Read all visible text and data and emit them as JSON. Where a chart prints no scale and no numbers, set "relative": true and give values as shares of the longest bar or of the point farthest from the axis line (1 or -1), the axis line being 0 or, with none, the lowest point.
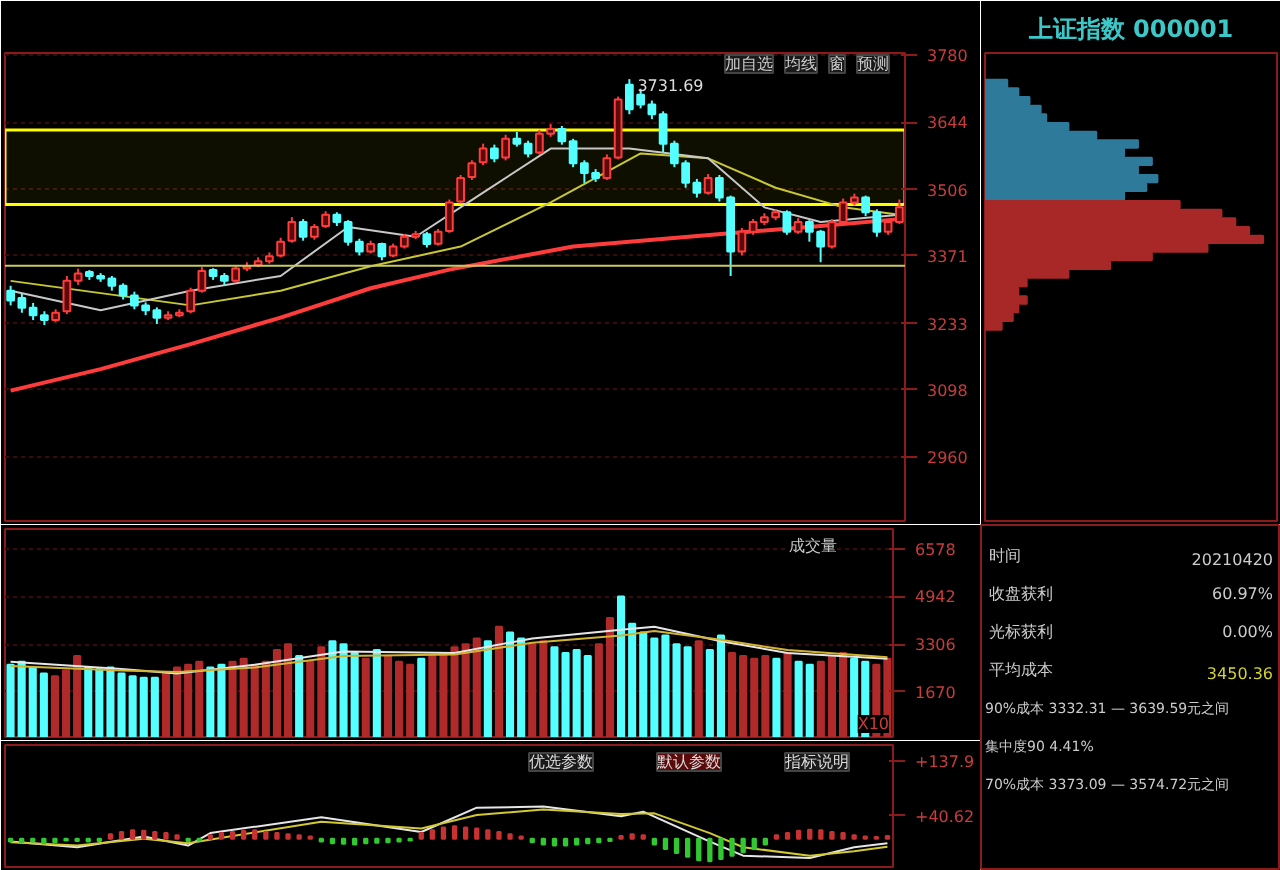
{
  "chart_data": [
    {
      "type": "candlestick",
      "categories": [
        null,
        null,
        null,
        null,
        null,
        null,
        null,
        null,
        null,
        null,
        null,
        null,
        null,
        null,
        null,
        null,
        null,
        null,
        null,
        null,
        null,
        null,
        null,
        null,
        null,
        null,
        null,
        null,
        null,
        null,
        null,
        null,
        null,
        null,
        null,
        null,
        null,
        null,
        null,
        null,
        null,
        null,
        null,
        null,
        null,
        null,
        null,
        null,
        null,
        null,
        null,
        null,
        null,
        null,
        null,
        null,
        null,
        null,
        null,
        null,
        null,
        null,
        null,
        null,
        null,
        null,
        null,
        null,
        null,
        null,
        null,
        null,
        null,
        null,
        null,
        null,
        null,
        null,
        null,
        null
      ],
      "ohlc": [
        [
          3300,
          3310,
          3270,
          3280
        ],
        [
          3285,
          3295,
          3255,
          3265
        ],
        [
          3265,
          3275,
          3240,
          3250
        ],
        [
          3250,
          3258,
          3230,
          3240
        ],
        [
          3240,
          3262,
          3236,
          3255
        ],
        [
          3258,
          3330,
          3252,
          3320
        ],
        [
          3320,
          3345,
          3312,
          3335
        ],
        [
          3338,
          3342,
          3322,
          3330
        ],
        [
          3330,
          3336,
          3318,
          3325
        ],
        [
          3325,
          3330,
          3300,
          3310
        ],
        [
          3310,
          3315,
          3282,
          3290
        ],
        [
          3290,
          3298,
          3262,
          3270
        ],
        [
          3270,
          3276,
          3250,
          3260
        ],
        [
          3260,
          3266,
          3232,
          3245
        ],
        [
          3245,
          3258,
          3240,
          3250
        ],
        [
          3250,
          3262,
          3246,
          3255
        ],
        [
          3258,
          3306,
          3254,
          3300
        ],
        [
          3300,
          3348,
          3296,
          3340
        ],
        [
          3342,
          3346,
          3322,
          3330
        ],
        [
          3330,
          3336,
          3312,
          3320
        ],
        [
          3320,
          3352,
          3316,
          3345
        ],
        [
          3345,
          3358,
          3340,
          3350
        ],
        [
          3352,
          3368,
          3348,
          3360
        ],
        [
          3360,
          3378,
          3355,
          3370
        ],
        [
          3372,
          3408,
          3368,
          3400
        ],
        [
          3402,
          3450,
          3398,
          3440
        ],
        [
          3440,
          3446,
          3402,
          3410
        ],
        [
          3410,
          3436,
          3404,
          3430
        ],
        [
          3432,
          3462,
          3428,
          3455
        ],
        [
          3455,
          3460,
          3432,
          3440
        ],
        [
          3440,
          3444,
          3392,
          3400
        ],
        [
          3400,
          3406,
          3372,
          3380
        ],
        [
          3380,
          3402,
          3376,
          3395
        ],
        [
          3395,
          3398,
          3362,
          3370
        ],
        [
          3372,
          3396,
          3368,
          3390
        ],
        [
          3390,
          3416,
          3386,
          3410
        ],
        [
          3410,
          3422,
          3405,
          3415
        ],
        [
          3415,
          3420,
          3388,
          3395
        ],
        [
          3396,
          3426,
          3392,
          3420
        ],
        [
          3422,
          3486,
          3418,
          3480
        ],
        [
          3482,
          3536,
          3478,
          3530
        ],
        [
          3532,
          3566,
          3526,
          3560
        ],
        [
          3562,
          3600,
          3556,
          3590
        ],
        [
          3590,
          3598,
          3562,
          3570
        ],
        [
          3572,
          3618,
          3566,
          3610
        ],
        [
          3610,
          3624,
          3594,
          3600
        ],
        [
          3600,
          3606,
          3572,
          3580
        ],
        [
          3582,
          3628,
          3578,
          3620
        ],
        [
          3620,
          3640,
          3614,
          3630
        ],
        [
          3630,
          3636,
          3598,
          3605
        ],
        [
          3605,
          3610,
          3552,
          3560
        ],
        [
          3560,
          3566,
          3520,
          3540
        ],
        [
          3540,
          3548,
          3522,
          3530
        ],
        [
          3530,
          3578,
          3526,
          3570
        ],
        [
          3572,
          3696,
          3568,
          3690
        ],
        [
          3720,
          3731.69,
          3660,
          3670
        ],
        [
          3700,
          3712,
          3672,
          3680
        ],
        [
          3680,
          3688,
          3650,
          3660
        ],
        [
          3660,
          3666,
          3582,
          3600
        ],
        [
          3600,
          3606,
          3552,
          3560
        ],
        [
          3560,
          3566,
          3510,
          3520
        ],
        [
          3520,
          3528,
          3490,
          3500
        ],
        [
          3500,
          3538,
          3496,
          3530
        ],
        [
          3530,
          3536,
          3482,
          3490
        ],
        [
          3490,
          3494,
          3330,
          3380
        ],
        [
          3380,
          3428,
          3372,
          3420
        ],
        [
          3420,
          3446,
          3414,
          3440
        ],
        [
          3440,
          3458,
          3434,
          3450
        ],
        [
          3450,
          3466,
          3444,
          3460
        ],
        [
          3460,
          3464,
          3414,
          3420
        ],
        [
          3420,
          3448,
          3416,
          3440
        ],
        [
          3440,
          3444,
          3400,
          3420
        ],
        [
          3420,
          3424,
          3358,
          3390
        ],
        [
          3390,
          3446,
          3386,
          3440
        ],
        [
          3440,
          3488,
          3436,
          3480
        ],
        [
          3480,
          3498,
          3474,
          3490
        ],
        [
          3490,
          3494,
          3452,
          3460
        ],
        [
          3460,
          3466,
          3410,
          3420
        ],
        [
          3420,
          3446,
          3414,
          3440
        ],
        [
          3440,
          3486,
          3436,
          3470
        ]
      ],
      "series": [
        {
          "type": "line",
          "color": "#ff3c3c",
          "values": [
            3096,
            null,
            null,
            null,
            null,
            null,
            null,
            null,
            3140,
            null,
            null,
            null,
            null,
            null,
            null,
            null,
            3191,
            null,
            null,
            null,
            null,
            null,
            null,
            null,
            3245,
            null,
            null,
            null,
            null,
            null,
            null,
            null,
            3305,
            null,
            null,
            null,
            null,
            null,
            null,
            3343,
            null,
            null,
            null,
            null,
            null,
            null,
            null,
            null,
            null,
            null,
            3390,
            null,
            null,
            null,
            null,
            null,
            null,
            null,
            null,
            null,
            null,
            null,
            null,
            null,
            null,
            3419,
            null,
            null,
            null,
            null,
            null,
            null,
            3432,
            null,
            null,
            null,
            null,
            null,
            null,
            3446
          ]
        },
        {
          "type": "line",
          "color": "#c8c832",
          "values": [
            3320,
            null,
            null,
            null,
            null,
            null,
            null,
            null,
            3295,
            null,
            null,
            null,
            null,
            null,
            null,
            null,
            3270,
            null,
            null,
            null,
            null,
            null,
            null,
            null,
            3300,
            null,
            null,
            null,
            null,
            null,
            null,
            null,
            3350,
            null,
            null,
            null,
            null,
            null,
            null,
            null,
            3390,
            null,
            null,
            null,
            null,
            null,
            null,
            null,
            3480,
            null,
            null,
            null,
            null,
            null,
            null,
            null,
            3580,
            null,
            null,
            null,
            null,
            null,
            3570,
            null,
            null,
            null,
            null,
            null,
            3510,
            null,
            null,
            null,
            null,
            null,
            3470,
            null,
            null,
            null,
            null,
            3455
          ]
        },
        {
          "type": "line",
          "color": "#c8c8c8",
          "values": [
            3300,
            null,
            null,
            null,
            null,
            null,
            null,
            null,
            3260,
            null,
            null,
            null,
            null,
            null,
            null,
            null,
            3300,
            null,
            null,
            null,
            null,
            null,
            null,
            null,
            3330,
            null,
            null,
            null,
            null,
            null,
            3430,
            null,
            null,
            null,
            null,
            null,
            3410,
            null,
            null,
            null,
            null,
            null,
            3500,
            null,
            null,
            null,
            null,
            null,
            3590,
            null,
            null,
            null,
            null,
            null,
            null,
            3590,
            null,
            null,
            null,
            null,
            null,
            null,
            3570,
            null,
            null,
            null,
            null,
            3470,
            null,
            null,
            null,
            null,
            3440,
            null,
            null,
            null,
            null,
            null,
            null,
            3455
          ]
        }
      ],
      "ylim": [
        2830,
        3785
      ],
      "yticks": [
        2960,
        3098,
        3233,
        3371,
        3506,
        3644,
        3780
      ],
      "grid": "y",
      "ref_lines": [
        {
          "axis": "y",
          "value": 3351,
          "color": "#c8c864"
        }
      ],
      "bands": [
        {
          "axis": "y",
          "from": 3476,
          "to": 3628,
          "color": "#ffff00"
        }
      ],
      "annotations": [
        "3731.69",
        "加自选",
        "均线",
        "窗",
        "预测"
      ]
    },
    {
      "type": "bar",
      "orientation": "horizontal",
      "relative": true,
      "title": "上证指数 000001",
      "categories": [
        null,
        null,
        null,
        null,
        null,
        null,
        null,
        null,
        null,
        null,
        null,
        null,
        null,
        null,
        null,
        null,
        null,
        null,
        null,
        null,
        null,
        null,
        null,
        null,
        null,
        null,
        null,
        null,
        null
      ],
      "values": [
        0.08,
        0.12,
        0.16,
        0.2,
        0.22,
        0.3,
        0.4,
        0.55,
        0.5,
        0.6,
        0.55,
        0.62,
        0.58,
        0.5,
        0.7,
        0.85,
        0.9,
        0.95,
        1.0,
        0.8,
        0.6,
        0.45,
        0.3,
        0.15,
        0.12,
        0.15,
        0.12,
        0.1,
        0.06
      ],
      "colors": [
        "#2e7a9a",
        "#2e7a9a",
        "#2e7a9a",
        "#2e7a9a",
        "#2e7a9a",
        "#2e7a9a",
        "#2e7a9a",
        "#2e7a9a",
        "#2e7a9a",
        "#2e7a9a",
        "#2e7a9a",
        "#2e7a9a",
        "#2e7a9a",
        "#2e7a9a",
        "#a82828",
        "#a82828",
        "#a82828",
        "#a82828",
        "#a82828",
        "#a82828",
        "#a82828",
        "#a82828",
        "#a82828",
        "#a82828",
        "#a82828",
        "#a82828",
        "#a82828",
        "#a82828",
        "#a82828"
      ]
    },
    {
      "type": "bar",
      "title": "成交量",
      "categories": [
        null,
        null,
        null,
        null,
        null,
        null,
        null,
        null,
        null,
        null,
        null,
        null,
        null,
        null,
        null,
        null,
        null,
        null,
        null,
        null,
        null,
        null,
        null,
        null,
        null,
        null,
        null,
        null,
        null,
        null,
        null,
        null,
        null,
        null,
        null,
        null,
        null,
        null,
        null,
        null,
        null,
        null,
        null,
        null,
        null,
        null,
        null,
        null,
        null,
        null,
        null,
        null,
        null,
        null,
        null,
        null,
        null,
        null,
        null,
        null,
        null,
        null,
        null,
        null,
        null,
        null,
        null,
        null,
        null,
        null,
        null,
        null,
        null,
        null,
        null,
        null,
        null,
        null,
        null,
        null
      ],
      "series": [
        {
          "type": "bar",
          "values": [
            2600,
            2700,
            2500,
            2300,
            2200,
            2400,
            2900,
            2500,
            2450,
            2500,
            2300,
            2200,
            2150,
            2150,
            2300,
            2500,
            2600,
            2700,
            2500,
            2600,
            2700,
            2800,
            2600,
            2700,
            3100,
            3300,
            2900,
            2700,
            3200,
            3400,
            3300,
            3000,
            2800,
            3100,
            2900,
            2700,
            2600,
            2800,
            2900,
            3000,
            3200,
            3300,
            3500,
            3400,
            3900,
            3700,
            3500,
            3300,
            3400,
            3200,
            3000,
            3100,
            2900,
            3300,
            4200,
            4940,
            4000,
            3700,
            3500,
            3600,
            3300,
            3200,
            3400,
            3100,
            3600,
            3000,
            2900,
            2800,
            2900,
            2800,
            3000,
            2700,
            2600,
            2700,
            2900,
            3000,
            2800,
            2700,
            2600,
            2800
          ],
          "colors": [
            "#54ffff",
            "#54ffff",
            "#54ffff",
            "#54ffff",
            "#b02a2a",
            "#b02a2a",
            "#b02a2a",
            "#54ffff",
            "#54ffff",
            "#54ffff",
            "#54ffff",
            "#54ffff",
            "#54ffff",
            "#54ffff",
            "#b02a2a",
            "#b02a2a",
            "#b02a2a",
            "#b02a2a",
            "#54ffff",
            "#54ffff",
            "#b02a2a",
            "#b02a2a",
            "#b02a2a",
            "#b02a2a",
            "#b02a2a",
            "#b02a2a",
            "#54ffff",
            "#b02a2a",
            "#b02a2a",
            "#54ffff",
            "#54ffff",
            "#54ffff",
            "#b02a2a",
            "#54ffff",
            "#b02a2a",
            "#b02a2a",
            "#b02a2a",
            "#54ffff",
            "#b02a2a",
            "#b02a2a",
            "#b02a2a",
            "#b02a2a",
            "#b02a2a",
            "#54ffff",
            "#b02a2a",
            "#54ffff",
            "#54ffff",
            "#b02a2a",
            "#b02a2a",
            "#54ffff",
            "#54ffff",
            "#54ffff",
            "#54ffff",
            "#b02a2a",
            "#b02a2a",
            "#54ffff",
            "#54ffff",
            "#54ffff",
            "#54ffff",
            "#54ffff",
            "#54ffff",
            "#54ffff",
            "#b02a2a",
            "#54ffff",
            "#54ffff",
            "#b02a2a",
            "#b02a2a",
            "#b02a2a",
            "#b02a2a",
            "#54ffff",
            "#b02a2a",
            "#54ffff",
            "#54ffff",
            "#b02a2a",
            "#b02a2a",
            "#b02a2a",
            "#54ffff",
            "#54ffff",
            "#b02a2a",
            "#b02a2a"
          ]
        },
        {
          "type": "line",
          "color": "#e6e6e6",
          "values": [
            2700,
            null,
            null,
            null,
            null,
            null,
            null,
            null,
            null,
            null,
            2450,
            null,
            null,
            null,
            null,
            2300,
            null,
            null,
            null,
            null,
            null,
            null,
            2600,
            null,
            null,
            null,
            null,
            null,
            null,
            null,
            3050,
            null,
            null,
            null,
            null,
            null,
            null,
            null,
            null,
            null,
            3000,
            null,
            null,
            null,
            null,
            null,
            null,
            3500,
            null,
            null,
            null,
            null,
            null,
            null,
            null,
            3800,
            null,
            null,
            3900,
            null,
            null,
            null,
            null,
            null,
            3400,
            null,
            null,
            null,
            null,
            null,
            3000,
            null,
            null,
            null,
            null,
            null,
            null,
            null,
            null,
            2800
          ]
        },
        {
          "type": "line",
          "color": "#d2b432",
          "values": [
            2550,
            null,
            null,
            null,
            null,
            null,
            null,
            null,
            null,
            null,
            2400,
            null,
            null,
            null,
            null,
            2350,
            null,
            null,
            null,
            null,
            null,
            null,
            2500,
            null,
            null,
            null,
            null,
            null,
            null,
            null,
            2900,
            null,
            null,
            null,
            null,
            null,
            null,
            null,
            null,
            null,
            2950,
            null,
            null,
            null,
            null,
            null,
            null,
            3350,
            null,
            null,
            null,
            null,
            null,
            null,
            null,
            3600,
            null,
            null,
            3750,
            null,
            null,
            null,
            null,
            null,
            3450,
            null,
            null,
            null,
            null,
            null,
            3100,
            null,
            null,
            null,
            null,
            null,
            null,
            null,
            null,
            2850
          ]
        }
      ],
      "ylim": [
        120,
        7250
      ],
      "yticks": [
        1670,
        3306,
        4942,
        6578
      ],
      "grid": "y",
      "annotations": [
        "X10"
      ]
    },
    {
      "type": "bar",
      "categories": [
        null,
        null,
        null,
        null,
        null,
        null,
        null,
        null,
        null,
        null,
        null,
        null,
        null,
        null,
        null,
        null,
        null,
        null,
        null,
        null,
        null,
        null,
        null,
        null,
        null,
        null,
        null,
        null,
        null,
        null,
        null,
        null,
        null,
        null,
        null,
        null,
        null,
        null,
        null,
        null,
        null,
        null,
        null,
        null,
        null,
        null,
        null,
        null,
        null,
        null,
        null,
        null,
        null,
        null,
        null,
        null,
        null,
        null,
        null,
        null,
        null,
        null,
        null,
        null,
        null,
        null,
        null,
        null,
        null,
        null,
        null,
        null,
        null,
        null,
        null,
        null,
        null,
        null,
        null,
        null
      ],
      "series": [
        {
          "type": "bar",
          "values": [
            -5,
            -6,
            -5,
            -8,
            -6,
            -3,
            -4,
            -5,
            -4,
            8,
            12,
            15,
            14,
            12,
            10,
            6,
            -4,
            -3,
            6,
            10,
            12,
            14,
            15,
            12,
            10,
            8,
            6,
            4,
            -5,
            -8,
            -9,
            -10,
            -8,
            -7,
            -6,
            -5,
            -3,
            10,
            15,
            20,
            22,
            20,
            18,
            15,
            12,
            8,
            4,
            -6,
            -10,
            -12,
            -12,
            -10,
            -8,
            -6,
            -4,
            5,
            8,
            6,
            -10,
            -18,
            -25,
            -32,
            -38,
            -40,
            -36,
            -30,
            -24,
            -18,
            -10,
            6,
            10,
            14,
            16,
            15,
            12,
            10,
            6,
            4,
            3,
            5
          ],
          "colors": [
            "#32c832",
            "#32c832",
            "#32c832",
            "#32c832",
            "#32c832",
            "#32c832",
            "#32c832",
            "#32c832",
            "#32c832",
            "#c83232",
            "#c83232",
            "#c83232",
            "#c83232",
            "#c83232",
            "#c83232",
            "#c83232",
            "#32c832",
            "#32c832",
            "#c83232",
            "#c83232",
            "#c83232",
            "#c83232",
            "#c83232",
            "#c83232",
            "#c83232",
            "#c83232",
            "#c83232",
            "#c83232",
            "#32c832",
            "#32c832",
            "#32c832",
            "#32c832",
            "#32c832",
            "#32c832",
            "#32c832",
            "#32c832",
            "#32c832",
            "#c83232",
            "#c83232",
            "#c83232",
            "#c83232",
            "#c83232",
            "#c83232",
            "#c83232",
            "#c83232",
            "#c83232",
            "#c83232",
            "#32c832",
            "#32c832",
            "#32c832",
            "#32c832",
            "#32c832",
            "#32c832",
            "#32c832",
            "#32c832",
            "#c83232",
            "#c83232",
            "#c83232",
            "#32c832",
            "#32c832",
            "#32c832",
            "#32c832",
            "#32c832",
            "#32c832",
            "#32c832",
            "#32c832",
            "#32c832",
            "#32c832",
            "#32c832",
            "#c83232",
            "#c83232",
            "#c83232",
            "#c83232",
            "#c83232",
            "#c83232",
            "#c83232",
            "#c83232",
            "#c83232",
            "#c83232",
            "#c83232"
          ]
        },
        {
          "type": "line",
          "color": "#e6e6e6",
          "values": [
            -5,
            null,
            null,
            null,
            null,
            null,
            -15,
            null,
            null,
            null,
            null,
            null,
            4,
            null,
            null,
            null,
            -12,
            null,
            10,
            null,
            null,
            null,
            null,
            null,
            null,
            null,
            null,
            null,
            38,
            null,
            null,
            null,
            null,
            null,
            null,
            null,
            null,
            12,
            null,
            null,
            null,
            null,
            55,
            null,
            null,
            null,
            null,
            null,
            57,
            null,
            null,
            null,
            null,
            null,
            null,
            40,
            null,
            48,
            null,
            null,
            null,
            null,
            null,
            -5,
            null,
            null,
            -30,
            null,
            null,
            null,
            null,
            null,
            -34,
            null,
            null,
            null,
            -15,
            null,
            null,
            -8
          ]
        },
        {
          "type": "line",
          "color": "#d2c832",
          "values": [
            -6,
            null,
            null,
            null,
            null,
            null,
            -12,
            null,
            null,
            null,
            null,
            null,
            0,
            null,
            null,
            null,
            -8,
            null,
            null,
            null,
            5,
            null,
            null,
            null,
            null,
            null,
            null,
            null,
            30,
            null,
            null,
            null,
            null,
            null,
            null,
            null,
            null,
            18,
            null,
            null,
            null,
            null,
            42,
            null,
            null,
            null,
            null,
            null,
            52,
            null,
            null,
            null,
            null,
            null,
            null,
            44,
            null,
            null,
            45,
            null,
            null,
            null,
            null,
            10,
            null,
            null,
            -15,
            null,
            null,
            null,
            null,
            null,
            -30,
            null,
            null,
            null,
            -22,
            null,
            null,
            -14
          ]
        }
      ],
      "ylim": [
        -50,
        166
      ],
      "yticks": [
        {
          "value": 137.9,
          "label": "+137.9"
        },
        {
          "value": 40.62,
          "label": "+40.62"
        }
      ],
      "annotations": [
        "优选参数",
        "默认参数",
        "指标说明"
      ]
    },
    {
      "type": "other",
      "annotations": [
        "时间",
        "20210420",
        "收盘获利",
        "60.97%",
        "光标获利",
        "0.00%",
        "平均成本",
        "3450.36",
        "90%成本  3332.31 — 3639.59元之间",
        "集中度90   4.41%",
        "70%成本  3373.09 — 3574.72元之间"
      ]
    }
  ]
}
